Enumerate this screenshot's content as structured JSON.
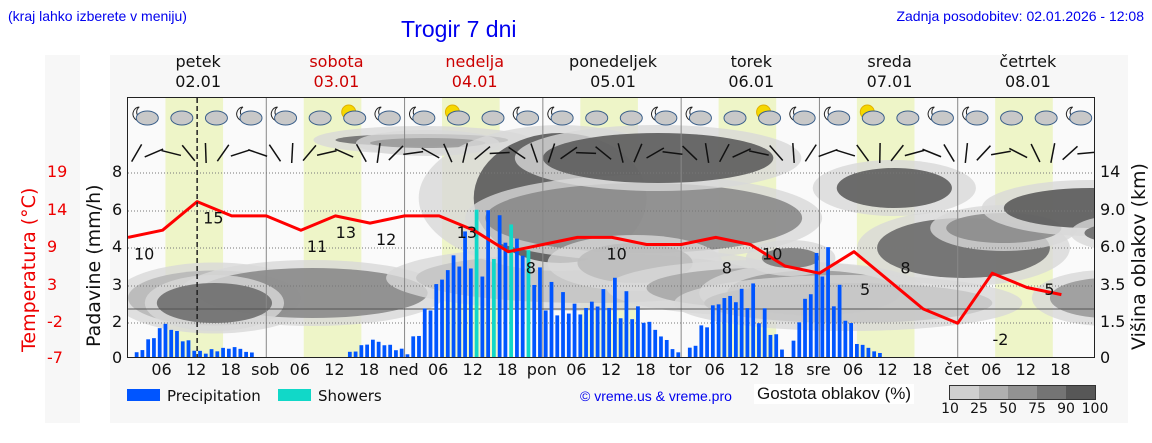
{
  "header": {
    "menu_hint": "(kraj lahko izberete v meniju)",
    "title": "Trogir 7 dni",
    "last_update": "Zadnja posodobitev: 02.01.2026 - 12:08"
  },
  "days": [
    {
      "name": "petek",
      "date": "02.01",
      "color": "#111111"
    },
    {
      "name": "sobota",
      "date": "03.01",
      "color": "#cc0000"
    },
    {
      "name": "nedelja",
      "date": "04.01",
      "color": "#cc0000"
    },
    {
      "name": "ponedeljek",
      "date": "05.01",
      "color": "#111111"
    },
    {
      "name": "torek",
      "date": "06.01",
      "color": "#111111"
    },
    {
      "name": "sreda",
      "date": "07.01",
      "color": "#111111"
    },
    {
      "name": "četrtek",
      "date": "08.01",
      "color": "#111111"
    }
  ],
  "axes": {
    "left_temp_label": "Temperatura (°C)",
    "left_temp_ticks": [
      "19",
      "14",
      "9",
      "3",
      "-2",
      "-7"
    ],
    "left_precip_label": "Padavine (mm/h)",
    "left_precip_ticks": [
      "8",
      "6",
      "4",
      "3",
      "2",
      "0"
    ],
    "right_label": "Višina oblakov (km)",
    "right_ticks": [
      "14",
      "9.0",
      "6.0",
      "3.5",
      "1.5",
      "0"
    ],
    "x_labels": [
      "06",
      "12",
      "18",
      "sob",
      "06",
      "12",
      "18",
      "ned",
      "06",
      "12",
      "18",
      "pon",
      "06",
      "12",
      "18",
      "tor",
      "06",
      "12",
      "18",
      "sre",
      "06",
      "12",
      "18",
      "čet",
      "06",
      "12",
      "18"
    ]
  },
  "legend": {
    "precipitation": "Precipitation",
    "showers": "Showers",
    "precipitation_color": "#0055ff",
    "showers_color": "#11d8c8",
    "credit": "© vreme.us & vreme.pro",
    "cloud_density_label": "Gostota oblakov (%)",
    "cloud_density_ticks": [
      "10",
      "25",
      "50",
      "75",
      "90",
      "100"
    ],
    "cloud_density_colors": [
      "#cfcfcf",
      "#b0b0b0",
      "#929292",
      "#747474",
      "#575757"
    ]
  },
  "temperature_labels": [
    {
      "value": "10",
      "h": 0
    },
    {
      "value": "15",
      "h": 12
    },
    {
      "value": "11",
      "h": 30
    },
    {
      "value": "13",
      "h": 35
    },
    {
      "value": "12",
      "h": 42
    },
    {
      "value": "13",
      "h": 56
    },
    {
      "value": "8",
      "h": 68
    },
    {
      "value": "10",
      "h": 82
    },
    {
      "value": "8",
      "h": 102
    },
    {
      "value": "10",
      "h": 109
    },
    {
      "value": "5",
      "h": 126
    },
    {
      "value": "8",
      "h": 133
    },
    {
      "value": "-2",
      "h": 149
    },
    {
      "value": "5",
      "h": 158
    }
  ],
  "colors": {
    "temperature_line": "#ff0000",
    "daylight_band": "#eef5c8",
    "now_marker": "#222222"
  },
  "chart_data": {
    "type": "line+bar",
    "title": "Trogir 7 dni",
    "xlabel": "",
    "ylabel": "Padavine (mm/h)",
    "ylabel_secondary": "Temperatura (°C)",
    "ylabel_right": "Višina oblakov (km)",
    "x": [
      "Pet 00",
      "Pet 06",
      "Pet 12",
      "Pet 18",
      "Sob 00",
      "Sob 06",
      "Sob 12",
      "Sob 18",
      "Ned 00",
      "Ned 06",
      "Ned 12",
      "Ned 18",
      "Pon 00",
      "Pon 06",
      "Pon 12",
      "Pon 18",
      "Tor 00",
      "Tor 06",
      "Tor 12",
      "Tor 18",
      "Sre 00",
      "Sre 06",
      "Sre 12",
      "Sre 18",
      "Čet 00",
      "Čet 06",
      "Čet 12",
      "Čet 18"
    ],
    "series": [
      {
        "name": "Temperatura (°C)",
        "type": "line",
        "values": [
          10,
          11,
          15,
          13,
          13,
          11,
          13,
          12,
          13,
          13,
          11,
          8,
          9,
          10,
          10,
          9,
          9,
          10,
          9,
          6,
          5,
          8,
          4,
          0,
          -2,
          5,
          3,
          2
        ]
      },
      {
        "name": "Precipitation (mm/h)",
        "type": "bar",
        "values": [
          0,
          1.5,
          0.3,
          0.5,
          0,
          0,
          0,
          0.8,
          0.3,
          3.5,
          5.5,
          5.5,
          3.0,
          2.0,
          3.0,
          1.5,
          0,
          2.5,
          2.8,
          0,
          4.8,
          0.7,
          0,
          0,
          0,
          0,
          0,
          0
        ]
      },
      {
        "name": "Showers (mm/h)",
        "type": "bar",
        "values": [
          0,
          0,
          0,
          0,
          0,
          0,
          0,
          0,
          0,
          0,
          0.5,
          5.0,
          0,
          0,
          0,
          0,
          0,
          0,
          0,
          0,
          0,
          0,
          0,
          0,
          0,
          0,
          0,
          0
        ]
      }
    ],
    "temperature_peak_labels": [
      10,
      15,
      11,
      13,
      12,
      13,
      8,
      10,
      8,
      10,
      5,
      8,
      -2,
      5
    ],
    "ylim_precip": [
      0,
      8
    ],
    "ylim_temp": [
      -7,
      19
    ],
    "ylim_cloud_km": [
      0,
      14
    ],
    "legend": [
      "Precipitation",
      "Showers"
    ],
    "legend_position": "bottom",
    "grid": true
  }
}
